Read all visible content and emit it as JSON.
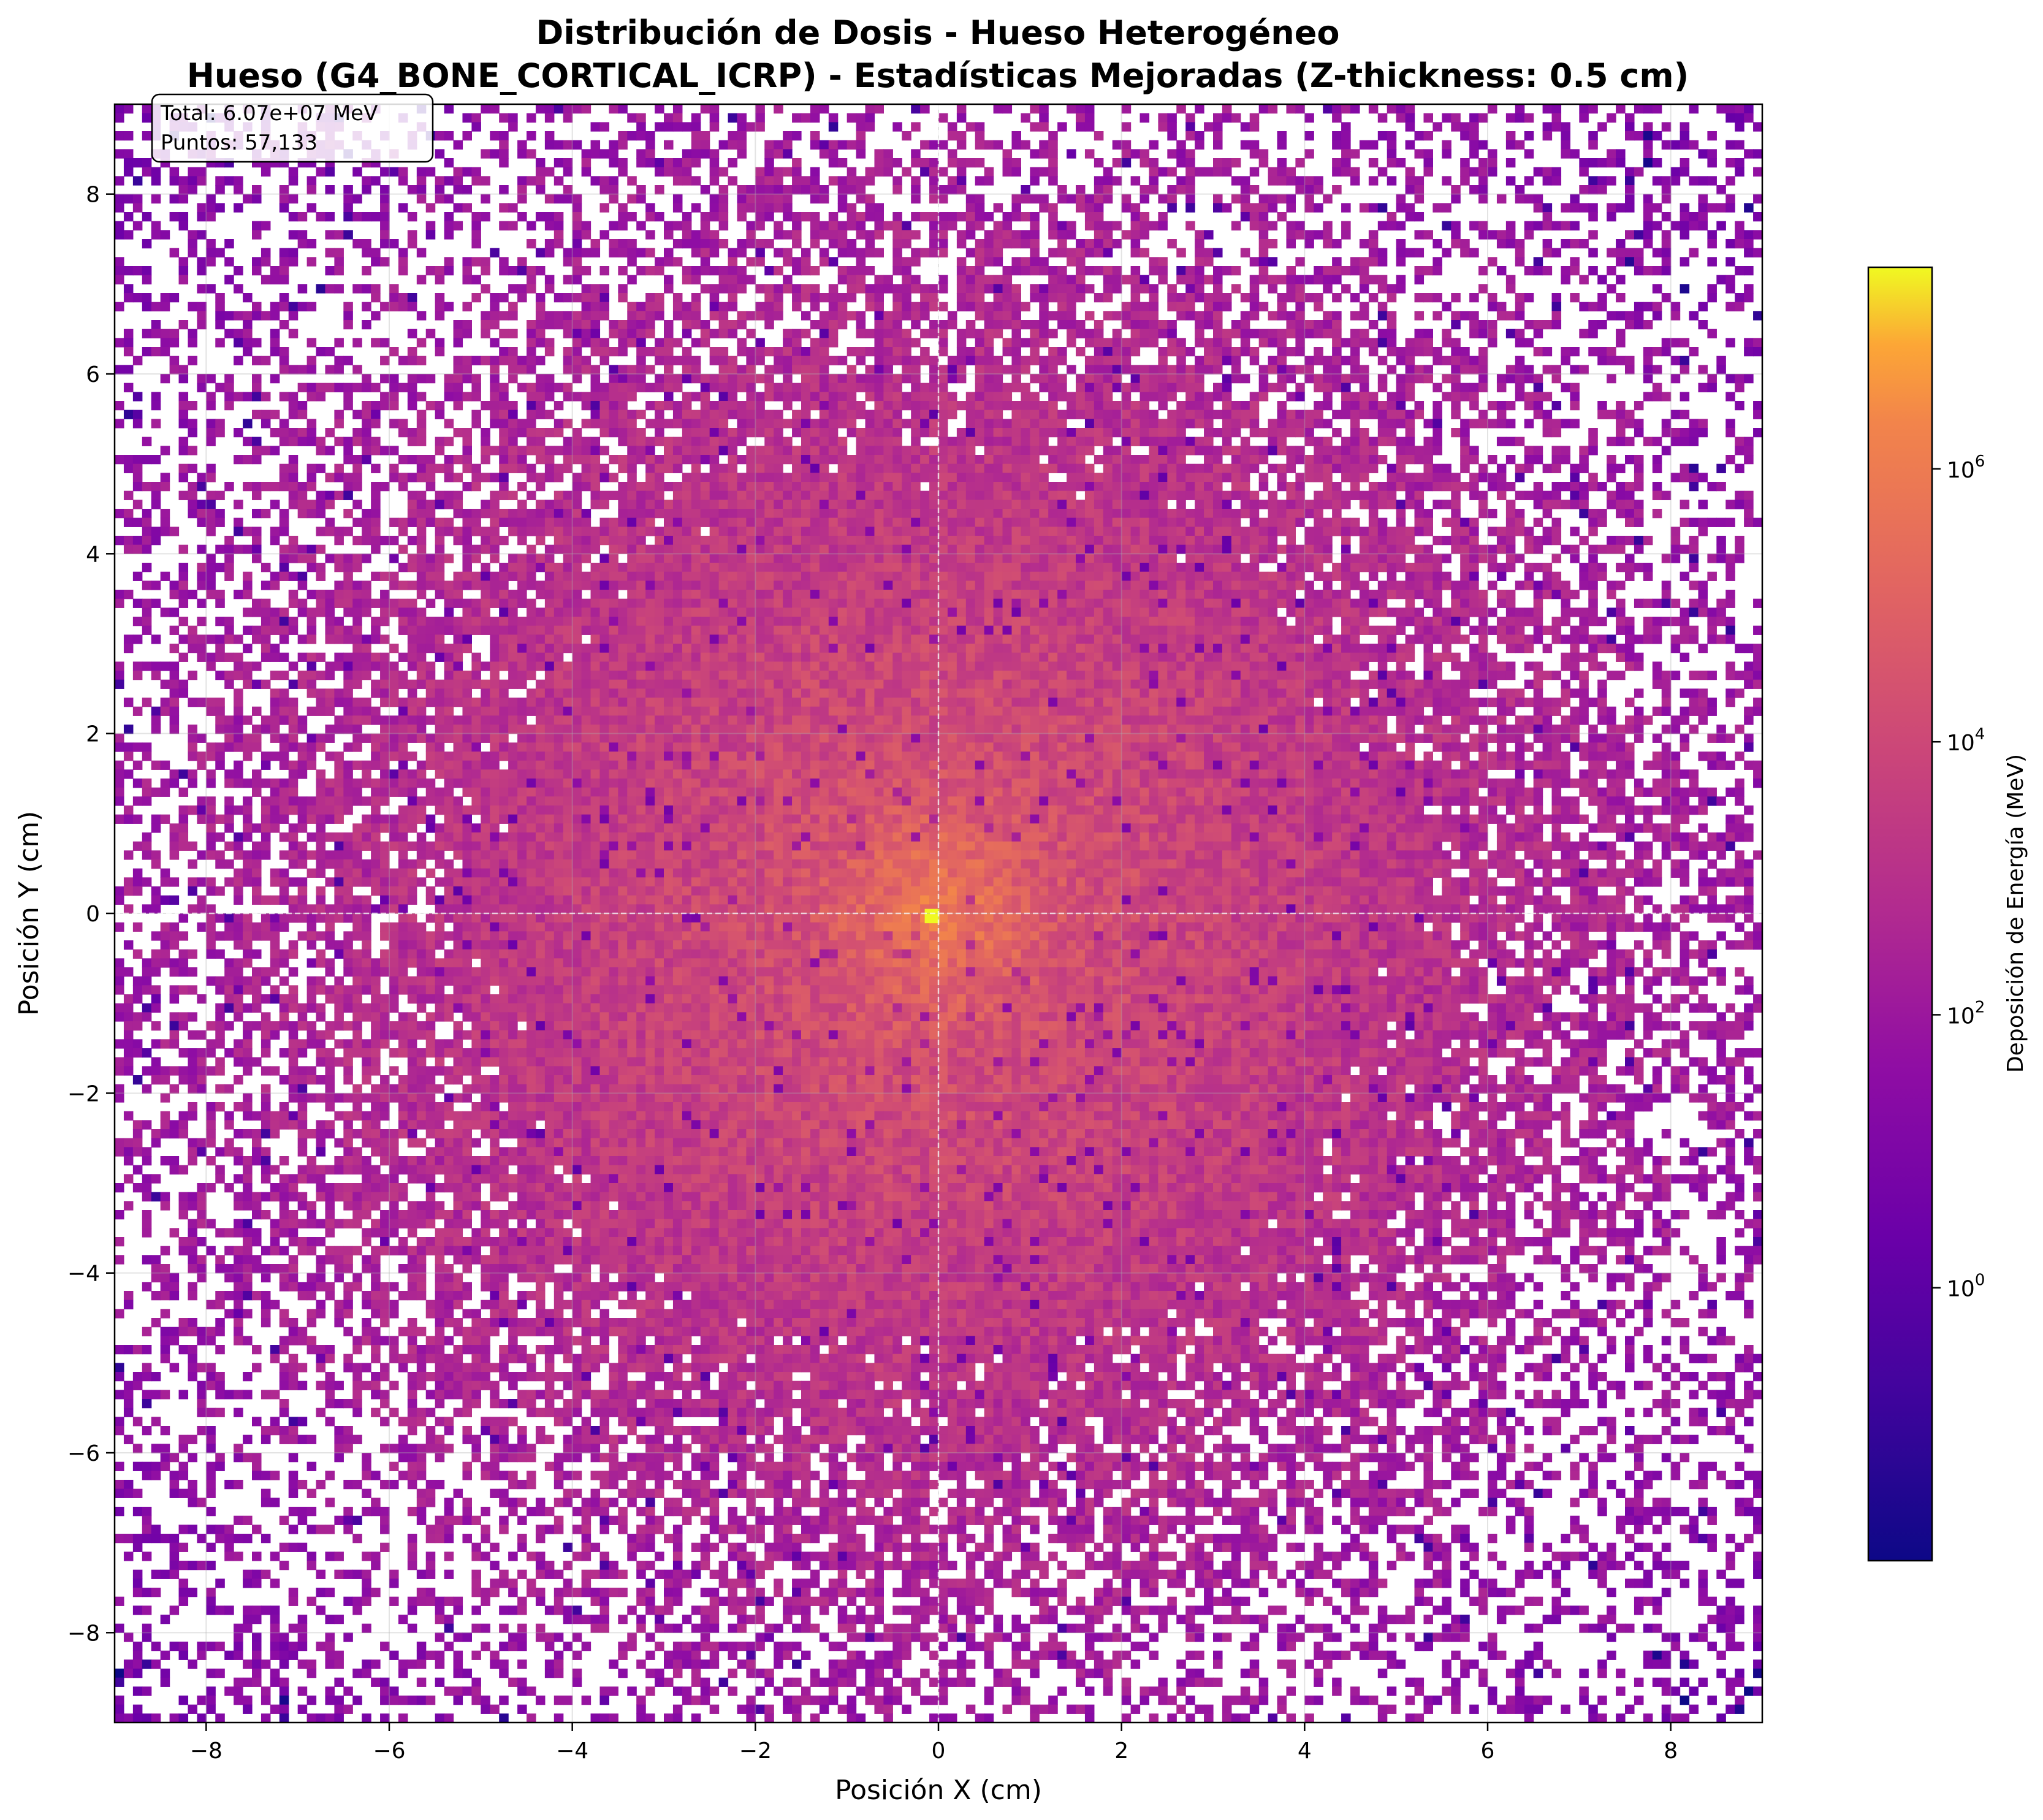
{
  "chart_data": {
    "type": "heatmap",
    "title_line1": "Distribución de Dosis - Hueso Heterogéneo",
    "title_line2": "Hueso (G4_BONE_CORTICAL_ICRP) - Estadísticas Mejoradas (Z-thickness: 0.5 cm)",
    "xlabel": "Posición X (cm)",
    "ylabel": "Posición Y (cm)",
    "xlim": [
      -9,
      9
    ],
    "ylim": [
      -9,
      9
    ],
    "x_ticks": [
      -8,
      -6,
      -4,
      -2,
      0,
      2,
      4,
      6,
      8
    ],
    "y_ticks": [
      -8,
      -6,
      -4,
      -2,
      0,
      2,
      4,
      6,
      8
    ],
    "x_tick_labels": [
      "−8",
      "−6",
      "−4",
      "−2",
      "0",
      "2",
      "4",
      "6",
      "8"
    ],
    "y_tick_labels": [
      "−8",
      "−6",
      "−4",
      "−2",
      "0",
      "2",
      "4",
      "6",
      "8"
    ],
    "grid": true,
    "crosshair_at": [
      0,
      0
    ],
    "colormap": "plasma",
    "colorbar": {
      "label": "Deposición de Energía (MeV)",
      "scale": "log",
      "range": [
        0.01,
        30000000
      ],
      "ticks": [
        1,
        100,
        10000,
        1000000
      ],
      "tick_bases": [
        "10",
        "10",
        "10",
        "10"
      ],
      "tick_exponents": [
        "0",
        "2",
        "4",
        "6"
      ]
    },
    "peak": {
      "x": -0.05,
      "y": -0.05
    },
    "stats_box": {
      "total": "Total: 6.07e+07 MeV",
      "points": "Puntos: 57,133"
    }
  }
}
